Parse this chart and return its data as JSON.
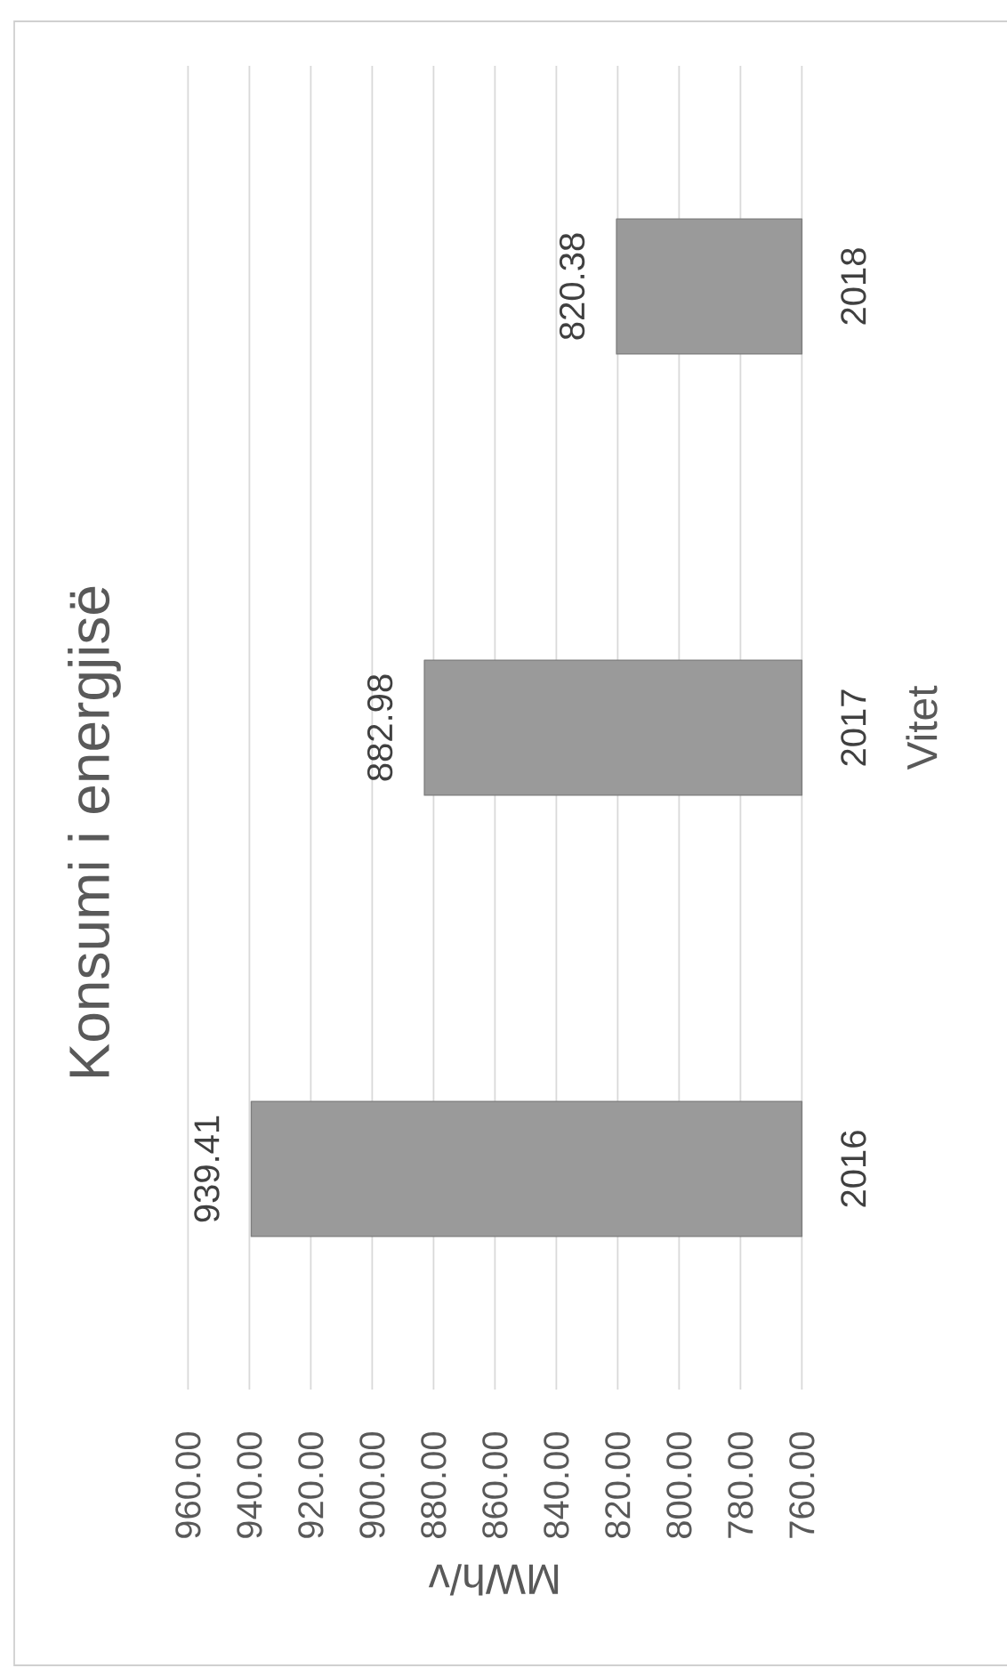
{
  "chart_data": {
    "type": "bar",
    "orientation": "horizontal",
    "title": "Konsumi i energjisë",
    "xlabel": "MWh/v",
    "ylabel": "Vitet",
    "categories": [
      "2018",
      "2017",
      "2016"
    ],
    "values": [
      820.38,
      882.98,
      939.41
    ],
    "color": "#9a9a9a",
    "xlim": [
      960,
      760
    ],
    "xticks": [
      {
        "value": 960,
        "label": "960.00"
      },
      {
        "value": 940,
        "label": "940.00"
      },
      {
        "value": 920,
        "label": "920.00"
      },
      {
        "value": 900,
        "label": "900.00"
      },
      {
        "value": 880,
        "label": "880.00"
      },
      {
        "value": 860,
        "label": "860.00"
      },
      {
        "value": 840,
        "label": "840.00"
      },
      {
        "value": 820,
        "label": "820.00"
      },
      {
        "value": 800,
        "label": "800.00"
      },
      {
        "value": 780,
        "label": "780.00"
      },
      {
        "value": 760,
        "label": "760.00"
      }
    ],
    "grid": "x",
    "data_labels": true
  }
}
